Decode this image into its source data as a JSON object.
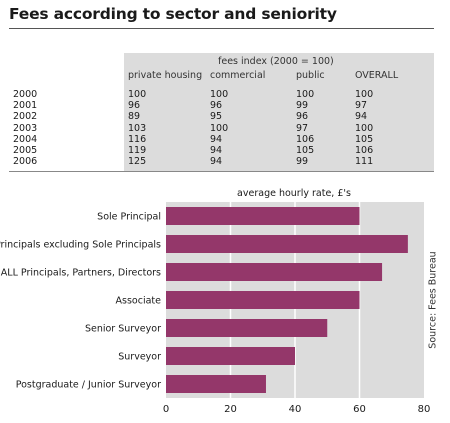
{
  "title": "Fees according to sector and seniority",
  "table": {
    "group_header": "fees index (2000 = 100)",
    "columns": [
      "private housing",
      "commercial",
      "public",
      "OVERALL"
    ],
    "rows": [
      {
        "year": "2000",
        "values": [
          "100",
          "100",
          "100",
          "100"
        ]
      },
      {
        "year": "2001",
        "values": [
          "96",
          "96",
          "99",
          "97"
        ]
      },
      {
        "year": "2002",
        "values": [
          "89",
          "95",
          "96",
          "94"
        ]
      },
      {
        "year": "2003",
        "values": [
          "103",
          "100",
          "97",
          "100"
        ]
      },
      {
        "year": "2004",
        "values": [
          "116",
          "94",
          "106",
          "105"
        ]
      },
      {
        "year": "2005",
        "values": [
          "119",
          "94",
          "105",
          "106"
        ]
      },
      {
        "year": "2006",
        "values": [
          "125",
          "94",
          "99",
          "111"
        ]
      }
    ]
  },
  "source": "Source: Fees Bureau",
  "colors": {
    "bar": "#94376a",
    "plot_bg": "#dcdcdc",
    "grid": "#ffffff"
  },
  "chart_data": {
    "type": "bar",
    "orientation": "horizontal",
    "title": "average hourly rate, £'s",
    "categories": [
      "Sole Principal",
      "Principals excluding Sole Principals",
      "ALL Principals, Partners, Directors",
      "Associate",
      "Senior Surveyor",
      "Surveyor",
      "Postgraduate / Junior Surveyor"
    ],
    "values": [
      60,
      75,
      67,
      60,
      50,
      40,
      31
    ],
    "xlim": [
      0,
      80
    ],
    "xticks": [
      "0",
      "20",
      "40",
      "60",
      "80"
    ],
    "grid": true
  }
}
